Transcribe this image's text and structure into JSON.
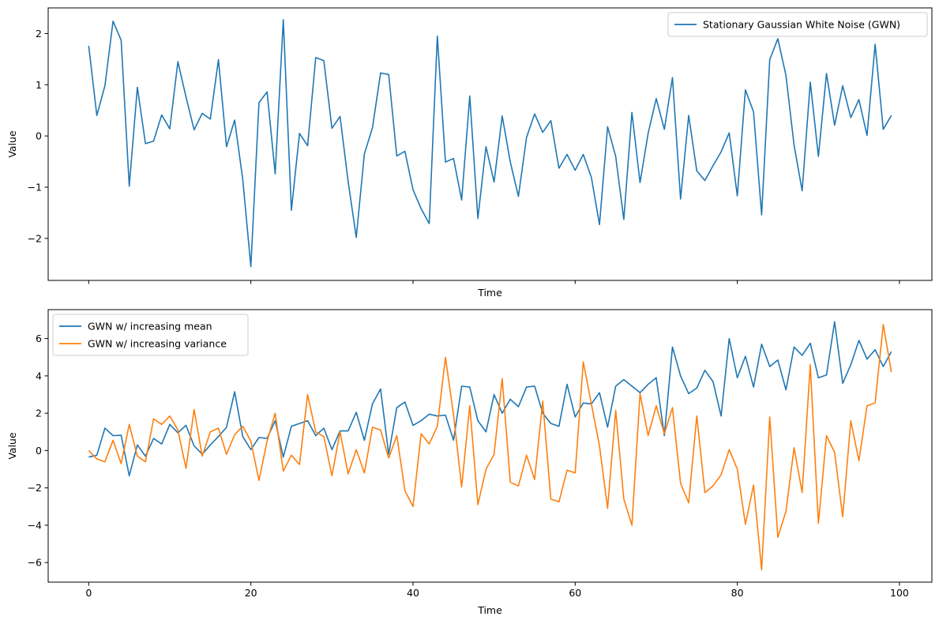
{
  "chart_data": [
    {
      "type": "line",
      "xlabel": "Time",
      "ylabel": "Value",
      "xlim": [
        -5,
        104
      ],
      "ylim": [
        -2.82,
        2.5
      ],
      "xticks": [
        0,
        20,
        40,
        60,
        80,
        100
      ],
      "xtick_labels_visible": false,
      "yticks": [
        2,
        1,
        0,
        -1,
        -2
      ],
      "ytick_labels": [
        "2",
        "1",
        "0",
        "−1",
        "−2"
      ],
      "legend": "top-right",
      "grid": false,
      "series": [
        {
          "name": "Stationary Gaussian White Noise (GWN)",
          "color": "#1f77b4",
          "x_start": 0,
          "values": [
            1.76,
            0.4,
            0.98,
            2.24,
            1.87,
            -0.98,
            0.95,
            -0.15,
            -0.1,
            0.41,
            0.14,
            1.45,
            0.76,
            0.12,
            0.44,
            0.33,
            1.49,
            -0.21,
            0.31,
            -0.85,
            -2.55,
            0.65,
            0.86,
            -0.74,
            2.27,
            -1.45,
            0.05,
            -0.19,
            1.53,
            1.47,
            0.15,
            0.38,
            -0.89,
            -1.98,
            -0.35,
            0.16,
            1.23,
            1.2,
            -0.39,
            -0.3,
            -1.05,
            -1.42,
            -1.71,
            1.95,
            -0.51,
            -0.44,
            -1.25,
            0.78,
            -1.61,
            -0.21,
            -0.9,
            0.39,
            -0.51,
            -1.18,
            -0.03,
            0.43,
            0.07,
            0.3,
            -0.63,
            -0.36,
            -0.67,
            -0.36,
            -0.81,
            -1.73,
            0.18,
            -0.4,
            -1.63,
            0.46,
            -0.91,
            0.05,
            0.73,
            0.13,
            1.14,
            -1.23,
            0.4,
            -0.68,
            -0.87,
            -0.58,
            -0.31,
            0.06,
            -1.17,
            0.9,
            0.47,
            -1.54,
            1.49,
            1.9,
            1.18,
            -0.18,
            -1.07,
            1.05,
            -0.4,
            1.22,
            0.21,
            0.98,
            0.36,
            0.71,
            0.01,
            1.79,
            0.13,
            0.4
          ]
        }
      ]
    },
    {
      "type": "line",
      "xlabel": "Time",
      "ylabel": "Value",
      "xlim": [
        -5,
        104
      ],
      "ylim": [
        -7.05,
        7.55
      ],
      "xticks": [
        0,
        20,
        40,
        60,
        80,
        100
      ],
      "xtick_labels": [
        "0",
        "20",
        "40",
        "60",
        "80",
        "100"
      ],
      "yticks": [
        6,
        4,
        2,
        0,
        -2,
        -4,
        -6
      ],
      "ytick_labels": [
        "6",
        "4",
        "2",
        "0",
        "−2",
        "−4",
        "−6"
      ],
      "legend": "top-left",
      "grid": false,
      "series": [
        {
          "name": "GWN w/ increasing mean",
          "color": "#1f77b4",
          "x_start": 0,
          "values": [
            -0.35,
            -0.25,
            1.2,
            0.8,
            0.82,
            -1.35,
            0.3,
            -0.3,
            0.65,
            0.35,
            1.4,
            0.95,
            1.35,
            0.25,
            -0.2,
            0.3,
            0.75,
            1.25,
            3.15,
            0.75,
            0.05,
            0.7,
            0.65,
            1.6,
            -0.35,
            1.3,
            1.45,
            1.6,
            0.8,
            1.2,
            0.05,
            1.05,
            1.05,
            2.05,
            0.55,
            2.5,
            3.3,
            -0.2,
            2.3,
            2.6,
            1.35,
            1.6,
            1.95,
            1.85,
            1.9,
            0.55,
            3.45,
            3.4,
            1.6,
            1.0,
            3.0,
            2.0,
            2.75,
            2.35,
            3.4,
            3.45,
            2.0,
            1.45,
            1.3,
            3.55,
            1.8,
            2.55,
            2.5,
            3.1,
            1.25,
            3.45,
            3.8,
            3.45,
            3.1,
            3.55,
            3.9,
            0.8,
            5.55,
            4.0,
            3.05,
            3.35,
            4.3,
            3.7,
            1.85,
            6.0,
            3.9,
            5.05,
            3.4,
            5.7,
            4.5,
            4.85,
            3.25,
            5.55,
            5.1,
            5.75,
            3.9,
            4.05,
            6.9,
            3.6,
            4.6,
            5.9,
            4.9,
            5.4,
            4.5,
            5.3
          ]
        },
        {
          "name": "GWN w/ increasing variance",
          "color": "#ff7f0e",
          "x_start": 0,
          "values": [
            0.0,
            -0.45,
            -0.6,
            0.55,
            -0.7,
            1.4,
            -0.3,
            -0.6,
            1.7,
            1.4,
            1.85,
            1.1,
            -0.95,
            2.2,
            -0.3,
            1.0,
            1.2,
            -0.2,
            0.85,
            1.3,
            0.5,
            -1.6,
            0.5,
            2.0,
            -1.1,
            -0.25,
            -0.75,
            3.0,
            1.0,
            0.75,
            -1.35,
            1.0,
            -1.25,
            0.05,
            -1.2,
            1.25,
            1.1,
            -0.4,
            0.8,
            -2.15,
            -3.0,
            0.9,
            0.35,
            1.3,
            5.0,
            1.9,
            -1.95,
            2.4,
            -2.9,
            -1.0,
            -0.2,
            3.85,
            -1.7,
            -1.9,
            -0.25,
            -1.55,
            2.65,
            -2.6,
            -2.75,
            -1.05,
            -1.2,
            4.75,
            2.5,
            0.25,
            -3.1,
            2.15,
            -2.6,
            -4.0,
            3.05,
            0.8,
            2.4,
            0.9,
            2.3,
            -1.75,
            -2.8,
            1.85,
            -2.25,
            -1.9,
            -1.3,
            0.05,
            -1.0,
            -3.95,
            -1.85,
            -6.4,
            1.8,
            -4.65,
            -3.25,
            0.15,
            -2.25,
            4.6,
            -3.9,
            0.8,
            -0.1,
            -3.55,
            1.6,
            -0.55,
            2.4,
            2.55,
            6.75,
            4.2
          ]
        }
      ]
    }
  ]
}
